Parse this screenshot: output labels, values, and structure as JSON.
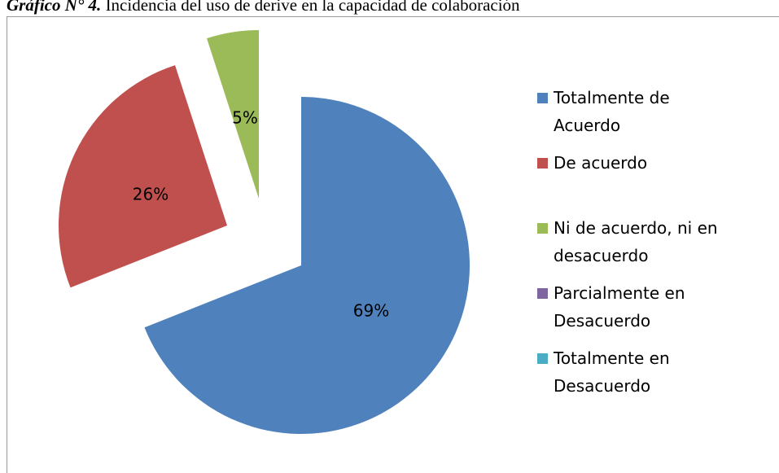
{
  "chart_data": {
    "type": "pie",
    "caption": "Gráfico N° 4.",
    "title": "Incidencia del uso de derive en la capacidad de colaboración",
    "categories": [
      "Totalmente de Acuerdo",
      "De acuerdo",
      "Ni de acuerdo, ni en desacuerdo",
      "Parcialmente en Desacuerdo",
      "Totalmente en Desacuerdo"
    ],
    "values": [
      69,
      26,
      5,
      0,
      0
    ],
    "value_labels": [
      "69%",
      "26%",
      "5%",
      null,
      null
    ],
    "colors": [
      "#4f81bd",
      "#c0504d",
      "#9bbb59",
      "#8064a2",
      "#4bacc6"
    ],
    "legend": "right"
  }
}
